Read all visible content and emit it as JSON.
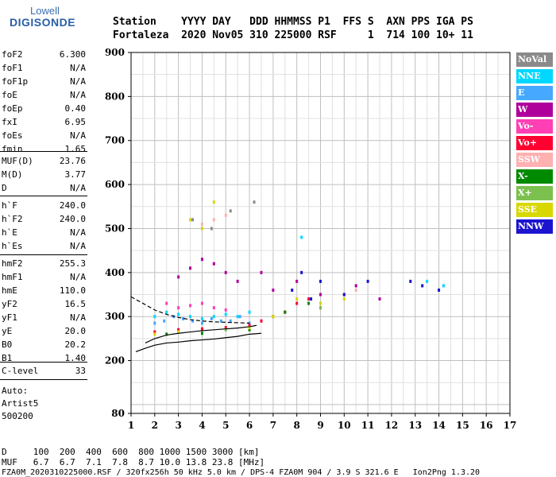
{
  "logo": {
    "top": "Lowell",
    "main": "DIGISONDE"
  },
  "header": {
    "line1": "Station    YYYY DAY   DDD HHMMSS P1  FFS S  AXN PPS IGA PS",
    "line2": "Fortaleza  2020 Nov05 310 225000 RSF     1  714 100 10+ 11"
  },
  "params_group1": [
    {
      "name": "foF2",
      "value": "6.300"
    },
    {
      "name": "foF1",
      "value": "N/A"
    },
    {
      "name": "foF1p",
      "value": "N/A"
    },
    {
      "name": "foE",
      "value": "N/A"
    },
    {
      "name": "foEp",
      "value": "0.40"
    },
    {
      "name": "fxI",
      "value": "6.95"
    },
    {
      "name": "foEs",
      "value": "N/A"
    },
    {
      "name": "fmin",
      "value": "1.65"
    }
  ],
  "params_group2": [
    {
      "name": "MUF(D)",
      "value": "23.76"
    },
    {
      "name": "M(D)",
      "value": "3.77"
    },
    {
      "name": "D",
      "value": "N/A"
    }
  ],
  "params_group3": [
    {
      "name": "h`F",
      "value": "240.0"
    },
    {
      "name": "h`F2",
      "value": "240.0"
    },
    {
      "name": "h`E",
      "value": "N/A"
    },
    {
      "name": "h`Es",
      "value": "N/A"
    }
  ],
  "params_group4": [
    {
      "name": "hmF2",
      "value": "255.3"
    },
    {
      "name": "hmF1",
      "value": "N/A"
    },
    {
      "name": "hmE",
      "value": "110.0"
    },
    {
      "name": "yF2",
      "value": "16.5"
    },
    {
      "name": "yF1",
      "value": "N/A"
    },
    {
      "name": "yE",
      "value": "20.0"
    },
    {
      "name": "B0",
      "value": "20.2"
    },
    {
      "name": "B1",
      "value": "1.40"
    }
  ],
  "params_group5": [
    {
      "name": "C-level",
      "value": "33"
    }
  ],
  "auto": {
    "line1": "Auto:",
    "line2": "Artist5",
    "line3": "500200"
  },
  "legend": [
    {
      "label": "NoVal",
      "color": "#8a8a8a"
    },
    {
      "label": "NNE",
      "color": "#00d8ff"
    },
    {
      "label": "E",
      "color": "#46a8ff"
    },
    {
      "label": "W",
      "color": "#b0009c"
    },
    {
      "label": "Vo-",
      "color": "#ff3fb4"
    },
    {
      "label": "Vo+",
      "color": "#ff0030"
    },
    {
      "label": "SSW",
      "color": "#ffb0b0"
    },
    {
      "label": "X-",
      "color": "#008a00"
    },
    {
      "label": "X+",
      "color": "#7cc050"
    },
    {
      "label": "SSE",
      "color": "#d8d800"
    },
    {
      "label": "NNW",
      "color": "#1c14d0"
    }
  ],
  "bottom": {
    "d_line": "D     100  200  400  600  800 1000 1500 3000 [km]",
    "muf_line": "MUF   6.7  6.7  7.1  7.8  8.7 10.0 13.8 23.8 [MHz]",
    "footer": "FZA0M_2020310225000.RSF / 320fx256h 50 kHz 5.0 km / DPS-4 FZA0M 904 / 3.9 S 321.6 E   Ion2Png 1.3.20"
  },
  "chart_data": {
    "type": "scatter",
    "xlim": [
      1,
      17
    ],
    "ylim": [
      80,
      900
    ],
    "x_ticks": [
      1,
      2,
      3,
      4,
      5,
      6,
      7,
      8,
      9,
      10,
      11,
      12,
      13,
      14,
      15,
      16,
      17
    ],
    "y_ticks": [
      80,
      200,
      300,
      400,
      500,
      600,
      700,
      800,
      900
    ],
    "x_tick_labels": [
      "1",
      "2",
      "3",
      "4",
      "5",
      "6",
      "7",
      "8",
      "9",
      "10",
      "11",
      "12",
      "13",
      "14",
      "15",
      "16",
      "17"
    ],
    "y_tick_labels": [
      "80",
      "200",
      "300",
      "400",
      "500",
      "600",
      "700",
      "800",
      "900"
    ],
    "grid": true,
    "series": [
      {
        "color": "#00d8ff",
        "x": [
          2.0,
          2.5,
          3.0,
          3.5,
          4.0,
          4.5,
          5.0,
          5.5,
          6.0,
          8.2,
          13.5,
          14.2
        ],
        "y": [
          300,
          310,
          305,
          300,
          295,
          300,
          305,
          300,
          310,
          480,
          380,
          370
        ]
      },
      {
        "color": "#46a8ff",
        "x": [
          2.0,
          2.4,
          2.8,
          3.2,
          3.6,
          4.0,
          4.4,
          4.8,
          5.2,
          5.6,
          6.0
        ],
        "y": [
          285,
          290,
          300,
          295,
          290,
          285,
          295,
          290,
          290,
          300,
          285
        ]
      },
      {
        "color": "#b0009c",
        "x": [
          3.0,
          3.5,
          4.0,
          4.5,
          5.0,
          5.5,
          6.5,
          7.0,
          8.0,
          9.0,
          10.5,
          11.5
        ],
        "y": [
          390,
          410,
          430,
          420,
          400,
          380,
          400,
          360,
          380,
          350,
          370,
          340
        ]
      },
      {
        "color": "#ff3fb4",
        "x": [
          2.5,
          3.0,
          3.5,
          4.0,
          4.5,
          5.0
        ],
        "y": [
          330,
          320,
          325,
          330,
          320,
          315
        ]
      },
      {
        "color": "#ff0030",
        "x": [
          2.0,
          3.0,
          4.0,
          5.0,
          6.0,
          6.5,
          7.0,
          7.5,
          8.0,
          8.5,
          9.0,
          10.0
        ],
        "y": [
          265,
          270,
          272,
          275,
          280,
          290,
          300,
          310,
          330,
          340,
          320,
          350
        ]
      },
      {
        "color": "#ffb0b0",
        "x": [
          4.0,
          4.5,
          5.0,
          10.5
        ],
        "y": [
          510,
          520,
          530,
          360
        ]
      },
      {
        "color": "#008a00",
        "x": [
          2.5,
          4.0,
          6.0,
          7.5,
          8.5
        ],
        "y": [
          260,
          262,
          270,
          310,
          330
        ]
      },
      {
        "color": "#7cc050",
        "x": [
          3.0,
          5.0,
          7.0,
          9.0
        ],
        "y": [
          265,
          270,
          300,
          320
        ]
      },
      {
        "color": "#d8d800",
        "x": [
          2.0,
          3.0,
          3.5,
          4.0,
          4.5,
          6.0,
          7.0,
          8.0,
          9.0,
          10.0
        ],
        "y": [
          260,
          265,
          520,
          500,
          560,
          275,
          300,
          340,
          330,
          340
        ]
      },
      {
        "color": "#1c14d0",
        "x": [
          7.8,
          8.2,
          8.6,
          9.0,
          10.0,
          11.0,
          12.8,
          13.3,
          14.0
        ],
        "y": [
          360,
          400,
          340,
          380,
          350,
          380,
          380,
          370,
          360
        ]
      },
      {
        "color": "#8a8a8a",
        "x": [
          3.6,
          4.4,
          5.2,
          6.2
        ],
        "y": [
          520,
          500,
          540,
          560
        ]
      }
    ],
    "traces": [
      {
        "style": "solid",
        "x": [
          1.2,
          1.6,
          2.0,
          2.5,
          3.0,
          3.5,
          4.0,
          4.5,
          5.0,
          5.5,
          6.0,
          6.5
        ],
        "y": [
          220,
          228,
          235,
          240,
          242,
          245,
          247,
          249,
          252,
          255,
          260,
          262
        ]
      },
      {
        "style": "solid",
        "x": [
          1.6,
          2.0,
          2.5,
          3.0,
          3.5,
          4.0,
          4.5,
          5.0,
          5.5,
          6.0,
          6.3
        ],
        "y": [
          240,
          250,
          258,
          262,
          265,
          268,
          270,
          272,
          274,
          277,
          280
        ]
      },
      {
        "style": "dashed",
        "x": [
          1.0,
          1.5,
          2.0,
          2.5,
          3.0,
          3.5,
          4.0,
          4.5,
          5.0,
          5.5,
          6.0
        ],
        "y": [
          345,
          330,
          315,
          305,
          298,
          293,
          290,
          288,
          287,
          286,
          285
        ]
      }
    ]
  }
}
